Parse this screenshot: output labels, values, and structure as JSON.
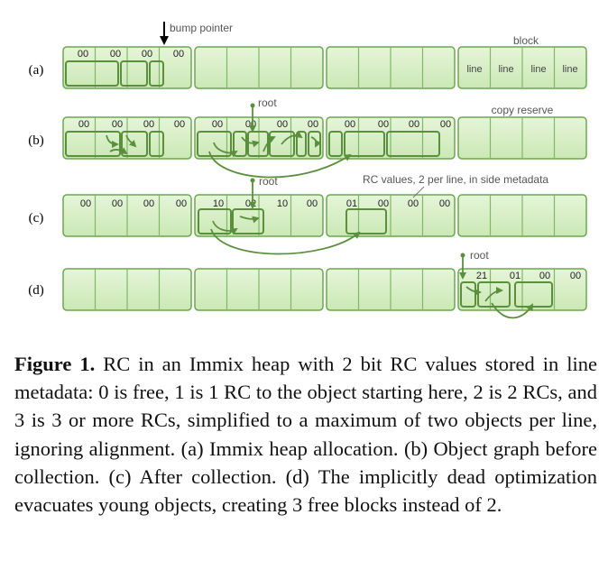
{
  "figure": {
    "row_labels": [
      "(a)",
      "(b)",
      "(c)",
      "(d)"
    ],
    "annotations": {
      "bump_pointer": "bump pointer",
      "block": "block",
      "copy_reserve": "copy reserve",
      "rc_values": "RC values, 2 per line, in side metadata",
      "root_b": "root",
      "root_c": "root",
      "root_d": "root",
      "line_1": "line",
      "line_2": "line",
      "line_3": "line",
      "line_4": "line"
    },
    "metadata": {
      "a": [
        "00",
        "00",
        "00",
        "00"
      ],
      "b_block1": [
        "00",
        "00",
        "00",
        "00"
      ],
      "b_block2": [
        "00",
        "00",
        "00",
        "00"
      ],
      "b_block3": [
        "00",
        "00",
        "00",
        "00"
      ],
      "c_block1": [
        "00",
        "00",
        "00",
        "00"
      ],
      "c_block2": [
        "10",
        "02",
        "10",
        "00"
      ],
      "c_block3": [
        "01",
        "00",
        "00",
        "00"
      ],
      "d_block4": [
        "21",
        "01",
        "00",
        "00"
      ]
    },
    "colors": {
      "block_fill": "#d5edc4",
      "block_stroke": "#6aa84f",
      "object_stroke": "#5a8f3c",
      "annotation_text": "#555555"
    }
  },
  "caption": {
    "label": "Figure 1.",
    "text": " RC in an Immix heap with 2 bit RC values stored in line metadata: 0 is free, 1 is 1 RC to the object starting here, 2 is 2 RCs, and 3 is 3 or more RCs, simplified to a maximum of two objects per line, ignoring alignment. (a) Immix heap allocation. (b) Object graph before collection. (c) After collection. (d) The implicitly dead optimization evacuates young objects, creating 3 free blocks instead of 2."
  }
}
